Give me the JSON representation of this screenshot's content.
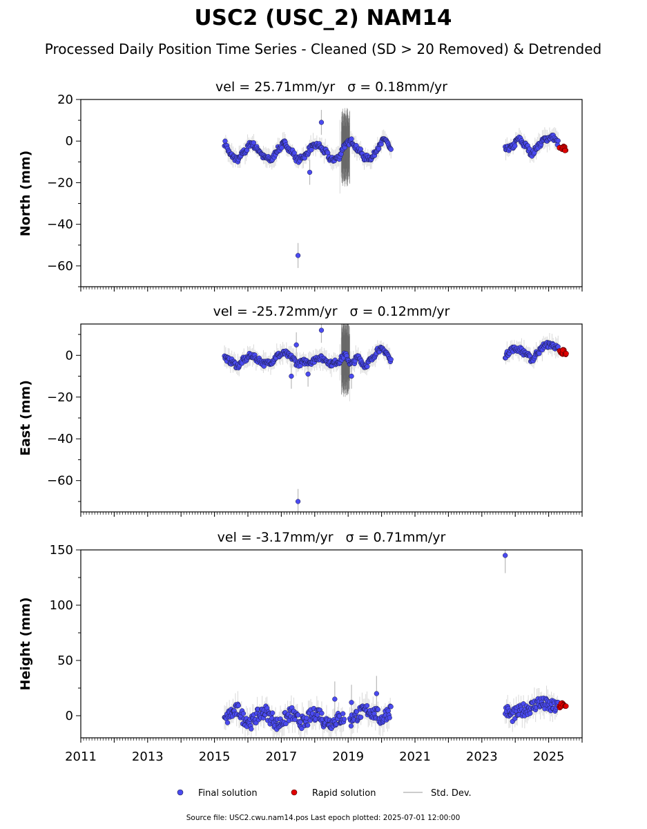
{
  "figure": {
    "title": "USC2 (USC_2) NAM14",
    "subtitle": "Processed Daily Position Time Series - Cleaned (SD > 20 Removed) & Detrended",
    "footer": "Source file: USC2.cwu.nam14.pos  Last epoch plotted: 2025-07-01 12:00:00"
  },
  "legend": {
    "items": [
      {
        "label": "Final solution",
        "color": "#4a4af0"
      },
      {
        "label": "Rapid solution",
        "color": "#e00000"
      },
      {
        "label": "Std. Dev.",
        "color": "#cccccc"
      }
    ]
  },
  "colors": {
    "final": "#4a4af0",
    "rapid": "#e00000",
    "stddev": "#b8b8b8",
    "edge": "#1a1a40"
  },
  "chart_data": [
    {
      "type": "scatter",
      "component": "North",
      "title_vel": "vel = 25.71mm/yr",
      "title_sigma": "σ = 0.18mm/yr",
      "ylabel": "North (mm)",
      "xlim": [
        2011.0,
        2026.0
      ],
      "ylim": [
        -70,
        20
      ],
      "yticks": [
        20,
        0,
        -20,
        -40,
        -60
      ],
      "ytick_labels": [
        "20",
        "0",
        "−20",
        "−40",
        "−60"
      ],
      "series": [
        {
          "name": "Final solution",
          "segments": [
            {
              "x_start": 2015.3,
              "x_end": 2020.3,
              "points": [
                [
                  2015.3,
                  -1
                ],
                [
                  2015.5,
                  -7
                ],
                [
                  2015.7,
                  -9
                ],
                [
                  2015.9,
                  -5
                ],
                [
                  2016.1,
                  -1
                ],
                [
                  2016.3,
                  -4
                ],
                [
                  2016.5,
                  -8
                ],
                [
                  2016.7,
                  -9
                ],
                [
                  2016.9,
                  -4
                ],
                [
                  2017.1,
                  -1
                ],
                [
                  2017.3,
                  -5
                ],
                [
                  2017.5,
                  -9
                ],
                [
                  2017.7,
                  -7
                ],
                [
                  2017.9,
                  -3
                ],
                [
                  2018.1,
                  -2
                ],
                [
                  2018.3,
                  -5
                ],
                [
                  2018.5,
                  -9
                ],
                [
                  2018.7,
                  -8
                ],
                [
                  2018.9,
                  -2
                ],
                [
                  2019.1,
                  0
                ],
                [
                  2019.3,
                  -4
                ],
                [
                  2019.5,
                  -8
                ],
                [
                  2019.7,
                  -8
                ],
                [
                  2019.9,
                  -3
                ],
                [
                  2020.1,
                  1
                ],
                [
                  2020.3,
                  -5
                ]
              ]
            },
            {
              "x_start": 2023.7,
              "x_end": 2025.3,
              "points": [
                [
                  2023.7,
                  -4
                ],
                [
                  2023.9,
                  -3
                ],
                [
                  2024.1,
                  1
                ],
                [
                  2024.3,
                  -2
                ],
                [
                  2024.5,
                  -6
                ],
                [
                  2024.7,
                  -2
                ],
                [
                  2024.9,
                  1
                ],
                [
                  2025.1,
                  2
                ],
                [
                  2025.3,
                  -1
                ]
              ]
            }
          ],
          "outliers": [
            [
              2018.2,
              9
            ],
            [
              2017.85,
              -15
            ],
            [
              2017.5,
              -55
            ]
          ]
        },
        {
          "name": "Rapid solution",
          "points": [
            [
              2025.35,
              -3
            ],
            [
              2025.4,
              -4
            ],
            [
              2025.45,
              -3
            ],
            [
              2025.5,
              -4
            ]
          ]
        }
      ]
    },
    {
      "type": "scatter",
      "component": "East",
      "title_vel": "vel = -25.72mm/yr",
      "title_sigma": "σ = 0.12mm/yr",
      "ylabel": "East (mm)",
      "xlim": [
        2011.0,
        2026.0
      ],
      "ylim": [
        -75,
        15
      ],
      "yticks": [
        0,
        -20,
        -40,
        -60
      ],
      "ytick_labels": [
        "0",
        "−20",
        "−40",
        "−60"
      ],
      "series": [
        {
          "name": "Final solution",
          "segments": [
            {
              "x_start": 2015.3,
              "x_end": 2020.3,
              "points": [
                [
                  2015.3,
                  -1
                ],
                [
                  2015.5,
                  -3
                ],
                [
                  2015.7,
                  -5
                ],
                [
                  2015.9,
                  -2
                ],
                [
                  2016.1,
                  0
                ],
                [
                  2016.3,
                  -2
                ],
                [
                  2016.5,
                  -4
                ],
                [
                  2016.7,
                  -3
                ],
                [
                  2016.9,
                  0
                ],
                [
                  2017.1,
                  1
                ],
                [
                  2017.3,
                  -1
                ],
                [
                  2017.5,
                  -4
                ],
                [
                  2017.7,
                  -3
                ],
                [
                  2017.9,
                  -3
                ],
                [
                  2018.1,
                  -1
                ],
                [
                  2018.3,
                  -2
                ],
                [
                  2018.5,
                  -4
                ],
                [
                  2018.7,
                  -3
                ],
                [
                  2018.9,
                  0
                ],
                [
                  2019.1,
                  -4
                ],
                [
                  2019.3,
                  -1
                ],
                [
                  2019.5,
                  -5
                ],
                [
                  2019.7,
                  -2
                ],
                [
                  2019.9,
                  3
                ],
                [
                  2020.1,
                  2
                ],
                [
                  2020.3,
                  -3
                ]
              ]
            },
            {
              "x_start": 2023.7,
              "x_end": 2025.3,
              "points": [
                [
                  2023.7,
                  0
                ],
                [
                  2023.9,
                  3
                ],
                [
                  2024.1,
                  3
                ],
                [
                  2024.3,
                  1
                ],
                [
                  2024.5,
                  -2
                ],
                [
                  2024.7,
                  2
                ],
                [
                  2024.9,
                  5
                ],
                [
                  2025.1,
                  5
                ],
                [
                  2025.3,
                  3
                ]
              ]
            }
          ],
          "outliers": [
            [
              2018.2,
              12
            ],
            [
              2017.45,
              5
            ],
            [
              2017.3,
              -10
            ],
            [
              2017.8,
              -9
            ],
            [
              2019.1,
              -10
            ],
            [
              2017.5,
              -70
            ]
          ]
        },
        {
          "name": "Rapid solution",
          "points": [
            [
              2025.35,
              2
            ],
            [
              2025.4,
              1
            ],
            [
              2025.45,
              2
            ],
            [
              2025.5,
              1
            ]
          ]
        }
      ]
    },
    {
      "type": "scatter",
      "component": "Height",
      "title_vel": "vel = -3.17mm/yr",
      "title_sigma": "σ = 0.71mm/yr",
      "ylabel": "Height (mm)",
      "xlim": [
        2011.0,
        2026.0
      ],
      "ylim": [
        -20,
        150
      ],
      "yticks": [
        150,
        100,
        50,
        0
      ],
      "ytick_labels": [
        "150",
        "100",
        "50",
        "0"
      ],
      "xticks": [
        2011,
        2013,
        2015,
        2017,
        2019,
        2021,
        2023,
        2025
      ],
      "xtick_labels": [
        "2011",
        "2013",
        "2015",
        "2017",
        "2019",
        "2021",
        "2023",
        "2025"
      ],
      "series": [
        {
          "name": "Final solution",
          "segments": [
            {
              "x_start": 2015.3,
              "x_end": 2018.9,
              "points": [
                [
                  2015.3,
                  -5
                ],
                [
                  2015.5,
                  2
                ],
                [
                  2015.7,
                  5
                ],
                [
                  2015.9,
                  -3
                ],
                [
                  2016.1,
                  -6
                ],
                [
                  2016.3,
                  0
                ],
                [
                  2016.5,
                  4
                ],
                [
                  2016.7,
                  -2
                ],
                [
                  2016.9,
                  -8
                ],
                [
                  2017.1,
                  -3
                ],
                [
                  2017.3,
                  2
                ],
                [
                  2017.5,
                  -4
                ],
                [
                  2017.7,
                  -7
                ],
                [
                  2017.9,
                  0
                ],
                [
                  2018.1,
                  3
                ],
                [
                  2018.3,
                  -5
                ],
                [
                  2018.5,
                  -6
                ],
                [
                  2018.7,
                  -3
                ],
                [
                  2018.9,
                  -2
                ]
              ]
            },
            {
              "x_start": 2019.05,
              "x_end": 2020.3,
              "points": [
                [
                  2019.05,
                  -5
                ],
                [
                  2019.2,
                  0
                ],
                [
                  2019.4,
                  3
                ],
                [
                  2019.6,
                  5
                ],
                [
                  2019.8,
                  2
                ],
                [
                  2020.0,
                  -3
                ],
                [
                  2020.2,
                  3
                ],
                [
                  2020.3,
                  6
                ]
              ]
            },
            {
              "x_start": 2023.7,
              "x_end": 2025.3,
              "points": [
                [
                  2023.7,
                  5
                ],
                [
                  2023.9,
                  0
                ],
                [
                  2024.1,
                  3
                ],
                [
                  2024.3,
                  6
                ],
                [
                  2024.5,
                  8
                ],
                [
                  2024.7,
                  12
                ],
                [
                  2024.9,
                  10
                ],
                [
                  2025.1,
                  8
                ],
                [
                  2025.3,
                  8
                ]
              ]
            }
          ],
          "outliers": [
            [
              2023.7,
              145
            ],
            [
              2019.85,
              20
            ],
            [
              2019.1,
              12
            ],
            [
              2018.6,
              15
            ]
          ]
        },
        {
          "name": "Rapid solution",
          "points": [
            [
              2025.35,
              8
            ],
            [
              2025.4,
              11
            ],
            [
              2025.45,
              10
            ],
            [
              2025.5,
              9
            ]
          ]
        }
      ]
    }
  ]
}
